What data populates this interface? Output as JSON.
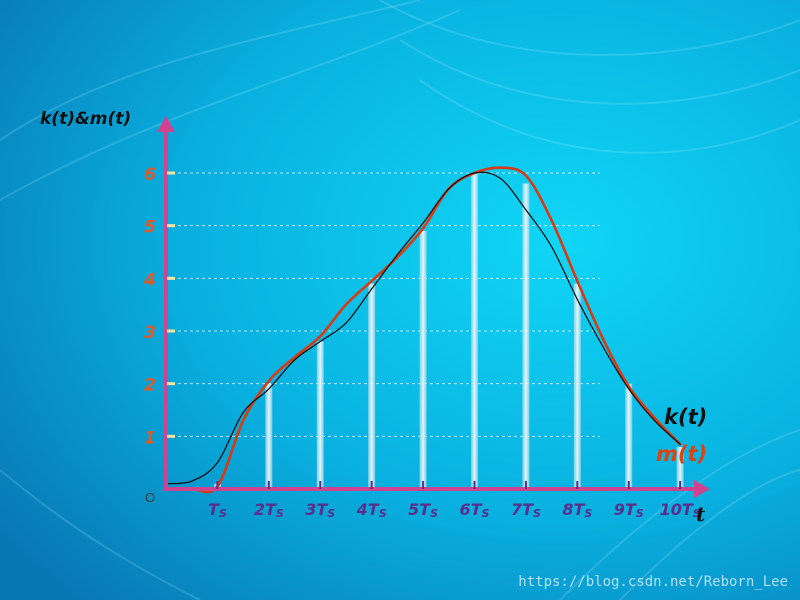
{
  "chart_data": {
    "type": "line",
    "ylabel": "k(t)&m(t)",
    "xlabel": "t",
    "origin_label": "O",
    "y_ticks": [
      {
        "value": 1,
        "label": "1"
      },
      {
        "value": 2,
        "label": "2"
      },
      {
        "value": 3,
        "label": "3"
      },
      {
        "value": 4,
        "label": "4"
      },
      {
        "value": 5,
        "label": "5"
      },
      {
        "value": 6,
        "label": "6"
      }
    ],
    "x_ticks": [
      {
        "value": 1,
        "label": "T",
        "sub": "S"
      },
      {
        "value": 2,
        "label": "2T",
        "sub": "S"
      },
      {
        "value": 3,
        "label": "3T",
        "sub": "S"
      },
      {
        "value": 4,
        "label": "4T",
        "sub": "S"
      },
      {
        "value": 5,
        "label": "5T",
        "sub": "S"
      },
      {
        "value": 6,
        "label": "6T",
        "sub": "S"
      },
      {
        "value": 7,
        "label": "7T",
        "sub": "S"
      },
      {
        "value": 8,
        "label": "8T",
        "sub": "S"
      },
      {
        "value": 9,
        "label": "9T",
        "sub": "S"
      },
      {
        "value": 10,
        "label": "10T",
        "sub": "S"
      }
    ],
    "xlim": [
      0,
      10.6
    ],
    "ylim": [
      0,
      6
    ],
    "samples": {
      "x": [
        1,
        2,
        3,
        4,
        5,
        6,
        7,
        8,
        9,
        10
      ],
      "values": [
        0.1,
        2.0,
        2.8,
        3.9,
        4.9,
        6.0,
        5.8,
        3.9,
        2.0,
        0.8
      ]
    },
    "series": [
      {
        "name": "k(t)",
        "color": "#111111",
        "x": [
          0,
          0.5,
          1,
          1.5,
          2,
          2.5,
          3,
          3.5,
          4,
          4.5,
          5,
          5.5,
          6,
          6.5,
          7,
          7.5,
          8,
          8.5,
          9,
          9.5,
          10
        ],
        "y": [
          0.1,
          0.15,
          0.5,
          1.45,
          1.9,
          2.45,
          2.8,
          3.15,
          3.8,
          4.45,
          5.05,
          5.7,
          6.0,
          5.9,
          5.3,
          4.6,
          3.6,
          2.7,
          1.9,
          1.3,
          0.85
        ]
      },
      {
        "name": "m(t)",
        "color": "#d93a12",
        "x": [
          0,
          0.5,
          1,
          1.5,
          2,
          2.5,
          3,
          3.5,
          4,
          4.5,
          5,
          5.5,
          6,
          6.5,
          7,
          7.5,
          8,
          8.5,
          9,
          9.5,
          10
        ],
        "y": [
          0.0,
          0.0,
          0.05,
          1.3,
          2.05,
          2.5,
          2.9,
          3.5,
          3.95,
          4.4,
          4.95,
          5.7,
          6.0,
          6.1,
          5.95,
          5.1,
          3.95,
          2.85,
          1.95,
          1.35,
          0.85
        ]
      }
    ],
    "colors": {
      "axis": "#d2438f",
      "y_tick_labels": "#e05a28",
      "x_tick_labels": "#5a2e8c",
      "sample_bars": "#cfe6ee",
      "gridlines": "#e8f6ff"
    },
    "grid": "dashed-horizontal"
  },
  "watermark": "https://blog.csdn.net/Reborn_Lee"
}
